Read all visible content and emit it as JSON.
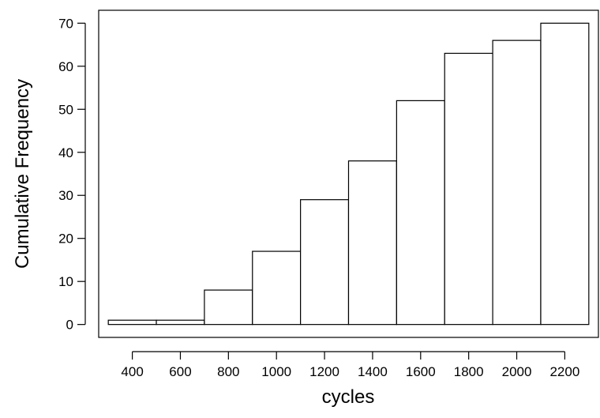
{
  "chart_data": {
    "type": "bar",
    "subtype": "cumulative-histogram",
    "title": "",
    "xlabel": "cycles",
    "ylabel": "Cumulative Frequency",
    "bins": [
      {
        "from": 300,
        "to": 500,
        "value": 1
      },
      {
        "from": 500,
        "to": 700,
        "value": 1
      },
      {
        "from": 700,
        "to": 900,
        "value": 8
      },
      {
        "from": 900,
        "to": 1100,
        "value": 17
      },
      {
        "from": 1100,
        "to": 1300,
        "value": 29
      },
      {
        "from": 1300,
        "to": 1500,
        "value": 38
      },
      {
        "from": 1500,
        "to": 1700,
        "value": 52
      },
      {
        "from": 1700,
        "to": 1900,
        "value": 63
      },
      {
        "from": 1900,
        "to": 2100,
        "value": 66
      },
      {
        "from": 2100,
        "to": 2300,
        "value": 70
      }
    ],
    "xticks": [
      "400",
      "600",
      "800",
      "1000",
      "1200",
      "1400",
      "1600",
      "1800",
      "2000",
      "2200"
    ],
    "yticks": [
      "0",
      "10",
      "20",
      "30",
      "40",
      "50",
      "60",
      "70"
    ],
    "xlim": [
      260,
      2340
    ],
    "ylim": [
      -3,
      73
    ],
    "grid": false,
    "legend": "none",
    "bar_fill": "#ffffff",
    "bar_stroke": "#000000"
  }
}
